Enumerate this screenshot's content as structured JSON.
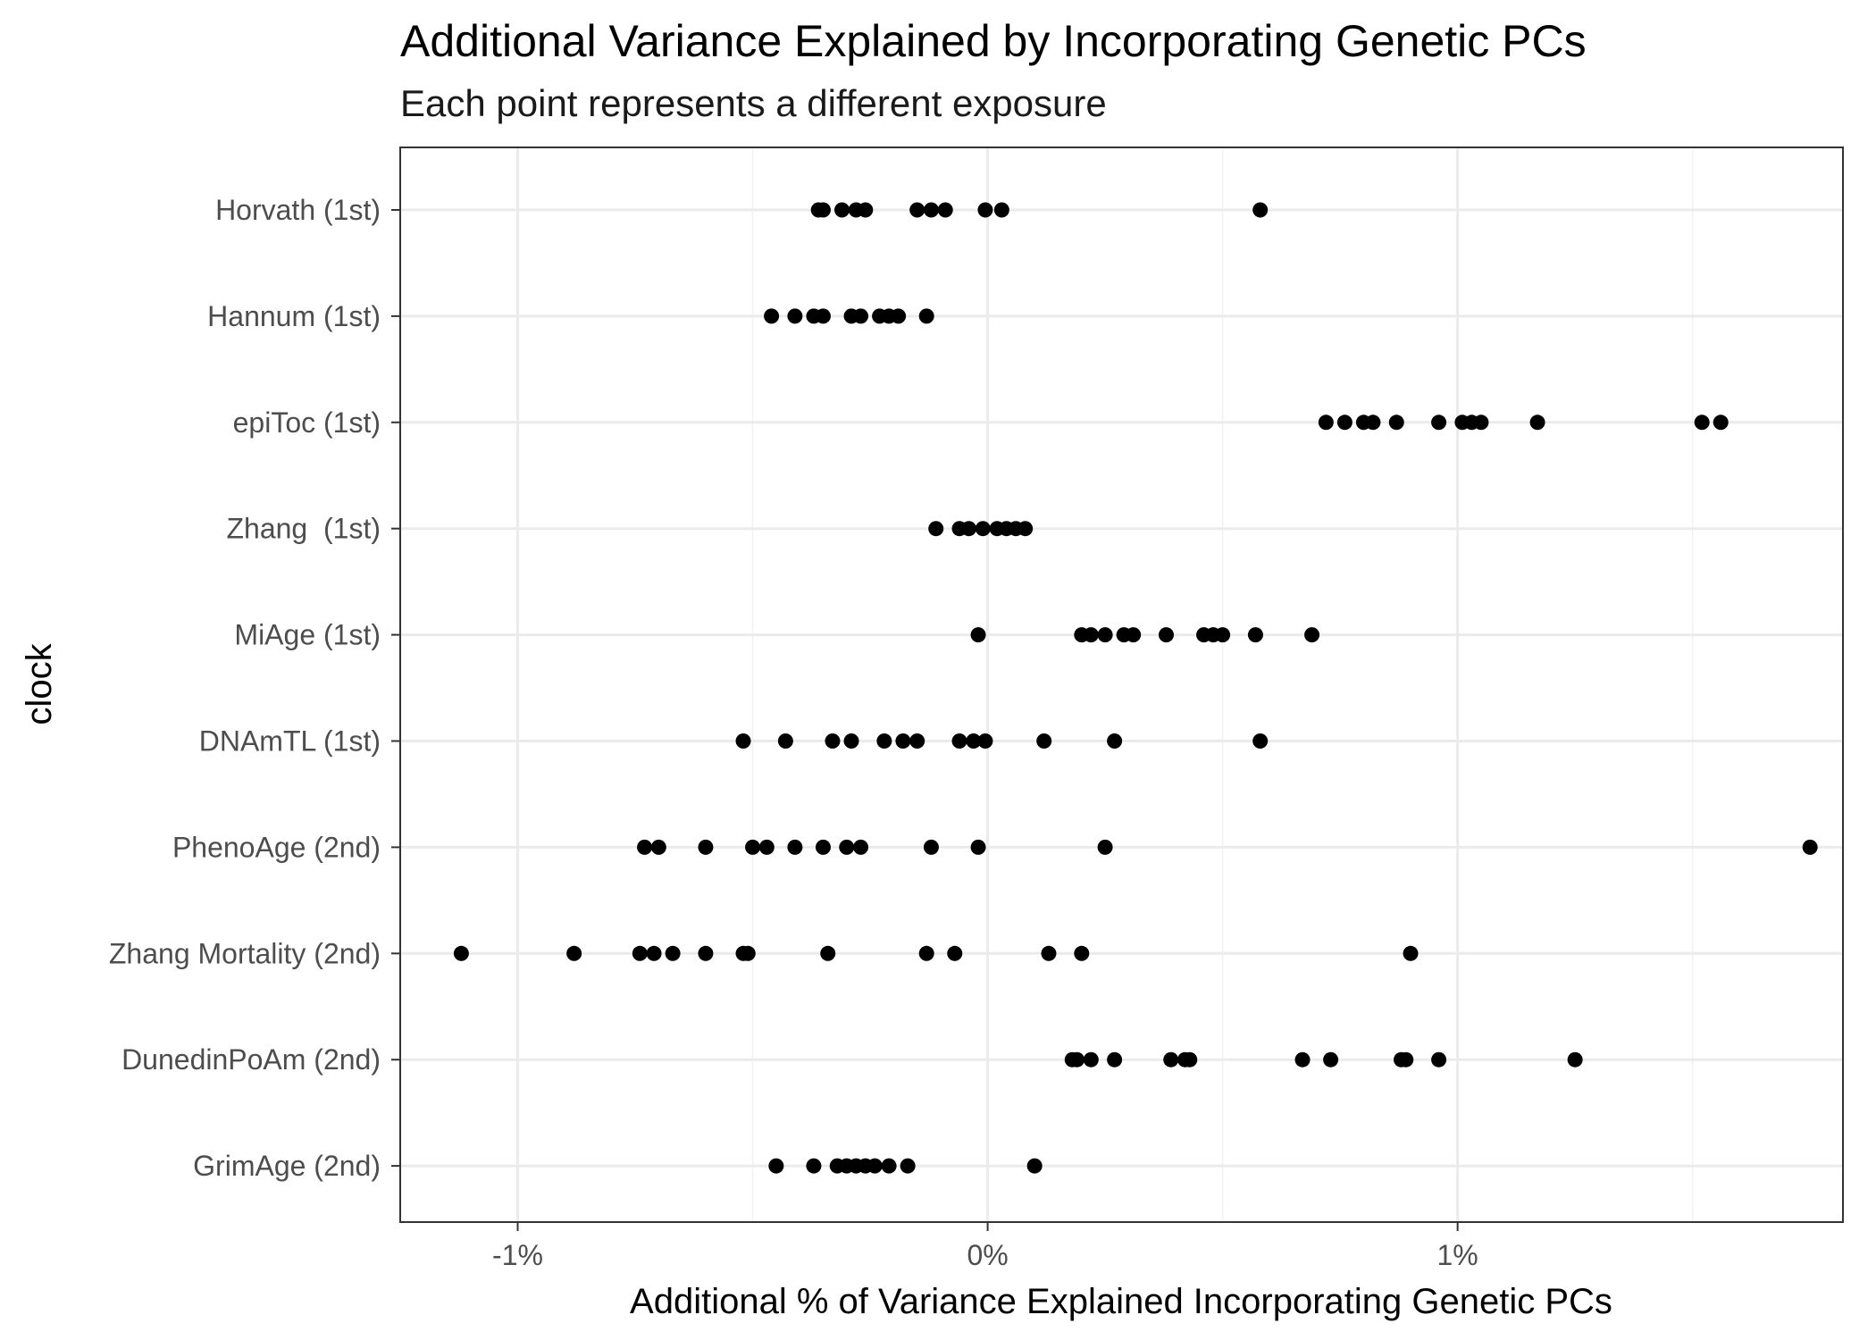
{
  "chart_data": {
    "type": "scatter",
    "title": "Additional Variance Explained by Incorporating Genetic PCs",
    "subtitle": "Each point represents a different exposure",
    "xlabel": "Additional % of Variance Explained Incorporating Genetic PCs",
    "ylabel": "clock",
    "xlim": [
      -1.25,
      1.82
    ],
    "x_ticks": [
      -1,
      0,
      1
    ],
    "x_tick_labels": [
      "-1%",
      "0%",
      "1%"
    ],
    "grid": true,
    "legend": "none",
    "point_color": "#000000",
    "categories": [
      "Horvath (1st)",
      "Hannum (1st)",
      "epiToc (1st)",
      "Zhang  (1st)",
      "MiAge (1st)",
      "DNAmTL (1st)",
      "PhenoAge (2nd)",
      "Zhang Mortality (2nd)",
      "DunedinPoAm (2nd)",
      "GrimAge (2nd)"
    ],
    "series": [
      {
        "category": "Horvath (1st)",
        "x": [
          -0.36,
          -0.35,
          -0.31,
          -0.28,
          -0.26,
          -0.15,
          -0.12,
          -0.09,
          -0.005,
          0.03,
          0.58
        ]
      },
      {
        "category": "Hannum (1st)",
        "x": [
          -0.46,
          -0.41,
          -0.37,
          -0.35,
          -0.29,
          -0.27,
          -0.23,
          -0.21,
          -0.19,
          -0.13
        ]
      },
      {
        "category": "epiToc (1st)",
        "x": [
          0.72,
          0.76,
          0.8,
          0.82,
          0.87,
          0.96,
          1.01,
          1.03,
          1.05,
          1.17,
          1.52,
          1.56
        ]
      },
      {
        "category": "Zhang  (1st)",
        "x": [
          -0.11,
          -0.06,
          -0.04,
          -0.01,
          0.02,
          0.04,
          0.06,
          0.08
        ]
      },
      {
        "category": "MiAge (1st)",
        "x": [
          -0.02,
          0.2,
          0.22,
          0.25,
          0.29,
          0.31,
          0.38,
          0.46,
          0.48,
          0.5,
          0.57,
          0.69
        ]
      },
      {
        "category": "DNAmTL (1st)",
        "x": [
          -0.52,
          -0.43,
          -0.33,
          -0.29,
          -0.22,
          -0.18,
          -0.15,
          -0.06,
          -0.03,
          -0.005,
          0.12,
          0.27,
          0.58
        ]
      },
      {
        "category": "PhenoAge (2nd)",
        "x": [
          -0.73,
          -0.7,
          -0.6,
          -0.5,
          -0.47,
          -0.41,
          -0.35,
          -0.3,
          -0.27,
          -0.12,
          -0.02,
          0.25,
          1.75
        ]
      },
      {
        "category": "Zhang Mortality (2nd)",
        "x": [
          -1.12,
          -0.88,
          -0.74,
          -0.71,
          -0.67,
          -0.6,
          -0.52,
          -0.51,
          -0.34,
          -0.13,
          -0.07,
          0.13,
          0.2,
          0.9
        ]
      },
      {
        "category": "DunedinPoAm (2nd)",
        "x": [
          0.18,
          0.19,
          0.22,
          0.27,
          0.39,
          0.42,
          0.43,
          0.67,
          0.73,
          0.88,
          0.89,
          0.96,
          1.25
        ]
      },
      {
        "category": "GrimAge (2nd)",
        "x": [
          -0.45,
          -0.37,
          -0.32,
          -0.3,
          -0.28,
          -0.26,
          -0.24,
          -0.21,
          -0.17,
          0.1
        ]
      }
    ]
  }
}
